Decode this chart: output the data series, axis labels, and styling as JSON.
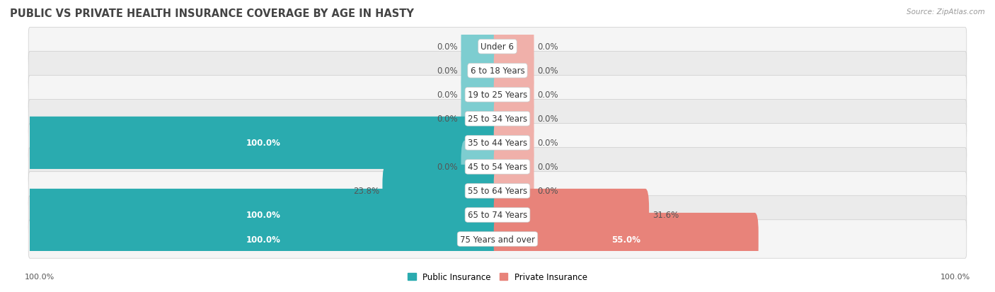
{
  "title": "PUBLIC VS PRIVATE HEALTH INSURANCE COVERAGE BY AGE IN HASTY",
  "source": "Source: ZipAtlas.com",
  "categories": [
    "Under 6",
    "6 to 18 Years",
    "19 to 25 Years",
    "25 to 34 Years",
    "35 to 44 Years",
    "45 to 54 Years",
    "55 to 64 Years",
    "65 to 74 Years",
    "75 Years and over"
  ],
  "public_values": [
    0.0,
    0.0,
    0.0,
    0.0,
    100.0,
    0.0,
    23.8,
    100.0,
    100.0
  ],
  "private_values": [
    0.0,
    0.0,
    0.0,
    0.0,
    0.0,
    0.0,
    0.0,
    31.6,
    55.0
  ],
  "public_color_full": "#2aabaf",
  "public_color_stub": "#7dcdd0",
  "private_color_full": "#e8837a",
  "private_color_stub": "#f0b0aa",
  "row_bg_color_odd": "#f5f5f5",
  "row_bg_color_even": "#ebebeb",
  "max_value": 100.0,
  "stub_size": 7.0,
  "bar_height": 0.58,
  "title_fontsize": 10.5,
  "label_fontsize": 8.5,
  "category_fontsize": 8.5,
  "axis_label_left": "100.0%",
  "axis_label_right": "100.0%",
  "legend_labels": [
    "Public Insurance",
    "Private Insurance"
  ],
  "title_color": "#444444",
  "text_color_dark": "#555555",
  "text_color_white": "#ffffff",
  "source_color": "#999999"
}
